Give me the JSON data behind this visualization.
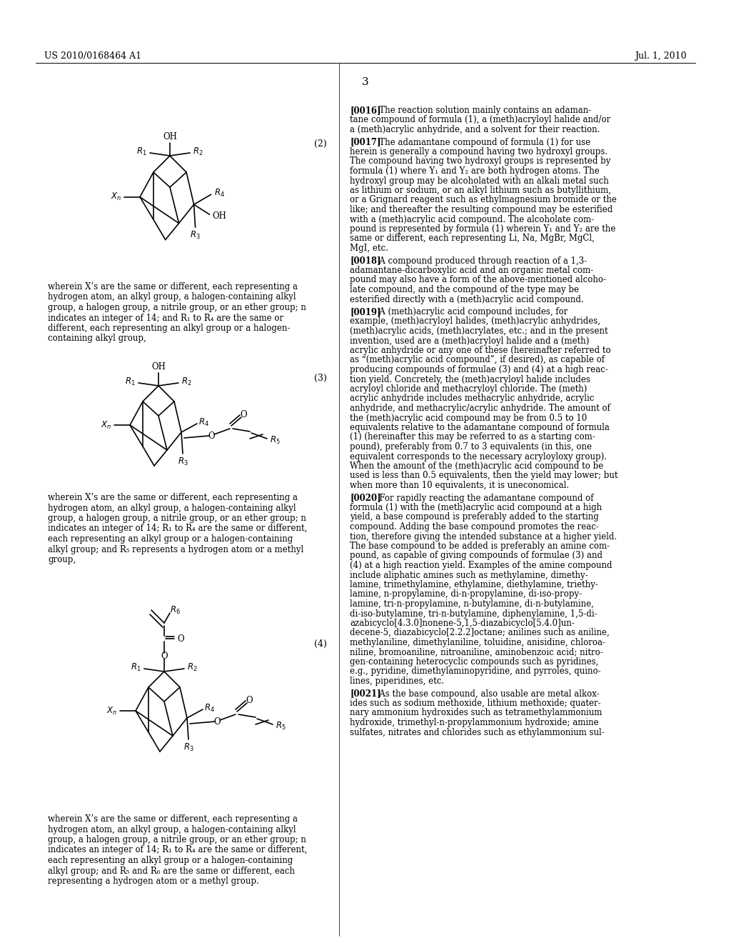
{
  "background_color": "#ffffff",
  "header_left": "US 2010/0168464 A1",
  "header_right": "Jul. 1, 2010",
  "page_number": "3",
  "formula2_label": "(2)",
  "formula3_label": "(3)",
  "formula4_label": "(4)",
  "text_block1_lines": [
    "wherein X’s are the same or different, each representing a",
    "hydrogen atom, an alkyl group, a halogen-containing alkyl",
    "group, a halogen group, a nitrile group, or an ether group; n",
    "indicates an integer of 14; and R₁ to R₄ are the same or",
    "different, each representing an alkyl group or a halogen-",
    "containing alkyl group,"
  ],
  "text_block2_lines": [
    "wherein X’s are the same or different, each representing a",
    "hydrogen atom, an alkyl group, a halogen-containing alkyl",
    "group, a halogen group, a nitrile group, or an ether group; n",
    "indicates an integer of 14; R₁ to R₄ are the same or different,",
    "each representing an alkyl group or a halogen-containing",
    "alkyl group; and R₅ represents a hydrogen atom or a methyl",
    "group,"
  ],
  "text_block3_lines": [
    "wherein X’s are the same or different, each representing a",
    "hydrogen atom, an alkyl group, a halogen-containing alkyl",
    "group, a halogen group, a nitrile group, or an ether group; n",
    "indicates an integer of 14; R₁ to R₄ are the same or different,",
    "each representing an alkyl group or a halogen-containing",
    "alkyl group; and R₅ and R₆ are the same or different, each",
    "representing a hydrogen atom or a methyl group."
  ],
  "right_col_paras": [
    {
      "tag": "[0016]",
      "lines": [
        "The reaction solution mainly contains an adaman-",
        "tane compound of formula (1), a (meth)acryloyl halide and/or",
        "a (meth)acrylic anhydride, and a solvent for their reaction."
      ]
    },
    {
      "tag": "[0017]",
      "lines": [
        "The adamantane compound of formula (1) for use",
        "herein is generally a compound having two hydroxyl groups.",
        "The compound having two hydroxyl groups is represented by",
        "formula (1) where Y₁ and Y₂ are both hydrogen atoms. The",
        "hydroxyl group may be alcoholated with an alkali metal such",
        "as lithium or sodium, or an alkyl lithium such as butyllithium,",
        "or a Grignard reagent such as ethylmagnesium bromide or the",
        "like; and thereafter the resulting compound may be esterified",
        "with a (meth)acrylic acid compound. The alcoholate com-",
        "pound is represented by formula (1) wherein Y₁ and Y₂ are the",
        "same or different, each representing Li, Na, MgBr, MgCl,",
        "MgI, etc."
      ]
    },
    {
      "tag": "[0018]",
      "lines": [
        "A compound produced through reaction of a 1,3-",
        "adamantane-dicarboxylic acid and an organic metal com-",
        "pound may also have a form of the above-mentioned alcoho-",
        "late compound, and the compound of the type may be",
        "esterified directly with a (meth)acrylic acid compound."
      ]
    },
    {
      "tag": "[0019]",
      "lines": [
        "A (meth)acrylic acid compound includes, for",
        "example, (meth)acryloyl halides, (meth)acrylic anhydrides,",
        "(meth)acrylic acids, (meth)acrylates, etc.; and in the present",
        "invention, used are a (meth)acryloyl halide and a (meth)",
        "acrylic anhydride or any one of these (hereinafter referred to",
        "as “(meth)acrylic acid compound”, if desired), as capable of",
        "producing compounds of formulae (3) and (4) at a high reac-",
        "tion yield. Concretely, the (meth)acryloyl halide includes",
        "acryloyl chloride and methacryloyl chloride. The (meth)",
        "acrylic anhydride includes methacrylic anhydride, acrylic",
        "anhydride, and methacrylic/acrylic anhydride. The amount of",
        "the (meth)acrylic acid compound may be from 0.5 to 10",
        "equivalents relative to the adamantane compound of formula",
        "(1) (hereinafter this may be referred to as a starting com-",
        "pound), preferably from 0.7 to 3 equivalents (in this, one",
        "equivalent corresponds to the necessary acryloyloxy group).",
        "When the amount of the (meth)acrylic acid compound to be",
        "used is less than 0.5 equivalents, then the yield may lower; but",
        "when more than 10 equivalents, it is uneconomical."
      ]
    },
    {
      "tag": "[0020]",
      "lines": [
        "For rapidly reacting the adamantane compound of",
        "formula (1) with the (meth)acrylic acid compound at a high",
        "yield, a base compound is preferably added to the starting",
        "compound. Adding the base compound promotes the reac-",
        "tion, therefore giving the intended substance at a higher yield.",
        "The base compound to be added is preferably an amine com-",
        "pound, as capable of giving compounds of formulae (3) and",
        "(4) at a high reaction yield. Examples of the amine compound",
        "include aliphatic amines such as methylamine, dimethy-",
        "lamine, trimethylamine, ethylamine, diethylamine, triethy-",
        "lamine, n-propylamine, di-n-propylamine, di-iso-propy-",
        "lamine, tri-n-propylamine, n-butylamine, di-n-butylamine,",
        "di-iso-butylamine, tri-n-butylamine, diphenylamine, 1,5-di-",
        "azabicyclo[4.3.0]nonene-5,1,5-diazabicyclo[5.4.0]un-",
        "decene-5, diazabicyclo[2.2.2]octane; anilines such as aniline,",
        "methylaniline, dimethylaniline, toluidine, anisidine, chloroa-",
        "niline, bromoaniline, nitroaniline, aminobenzoic acid; nitro-",
        "gen-containing heterocyclic compounds such as pyridines,",
        "e.g., pyridine, dimethylaminopyridine, and pyrroles, quino-",
        "lines, piperidines, etc."
      ]
    },
    {
      "tag": "[0021]",
      "lines": [
        "As the base compound, also usable are metal alkox-",
        "ides such as sodium methoxide, lithium methoxide; quater-",
        "nary ammonium hydroxides such as tetramethylammonium",
        "hydroxide, trimethyl-n-propylammonium hydroxide; amine",
        "sulfates, nitrates and chlorides such as ethylammonium sul-"
      ]
    }
  ]
}
